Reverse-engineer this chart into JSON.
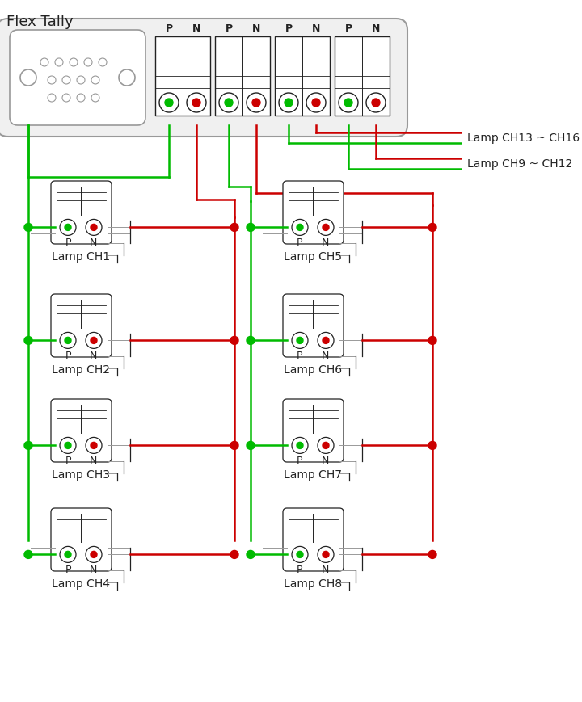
{
  "title": "Flex Tally",
  "green": "#00BB00",
  "red": "#CC0000",
  "dark": "#222222",
  "gray": "#999999",
  "bg": "#FFFFFF",
  "lamp_labels_left": [
    "Lamp CH1",
    "Lamp CH2",
    "Lamp CH3",
    "Lamp CH4"
  ],
  "lamp_labels_right": [
    "Lamp CH5",
    "Lamp CH6",
    "Lamp CH7",
    "Lamp CH8"
  ],
  "legend_labels": [
    "Lamp CH13 ~ CH16",
    "Lamp CH9 ~ CH12"
  ]
}
